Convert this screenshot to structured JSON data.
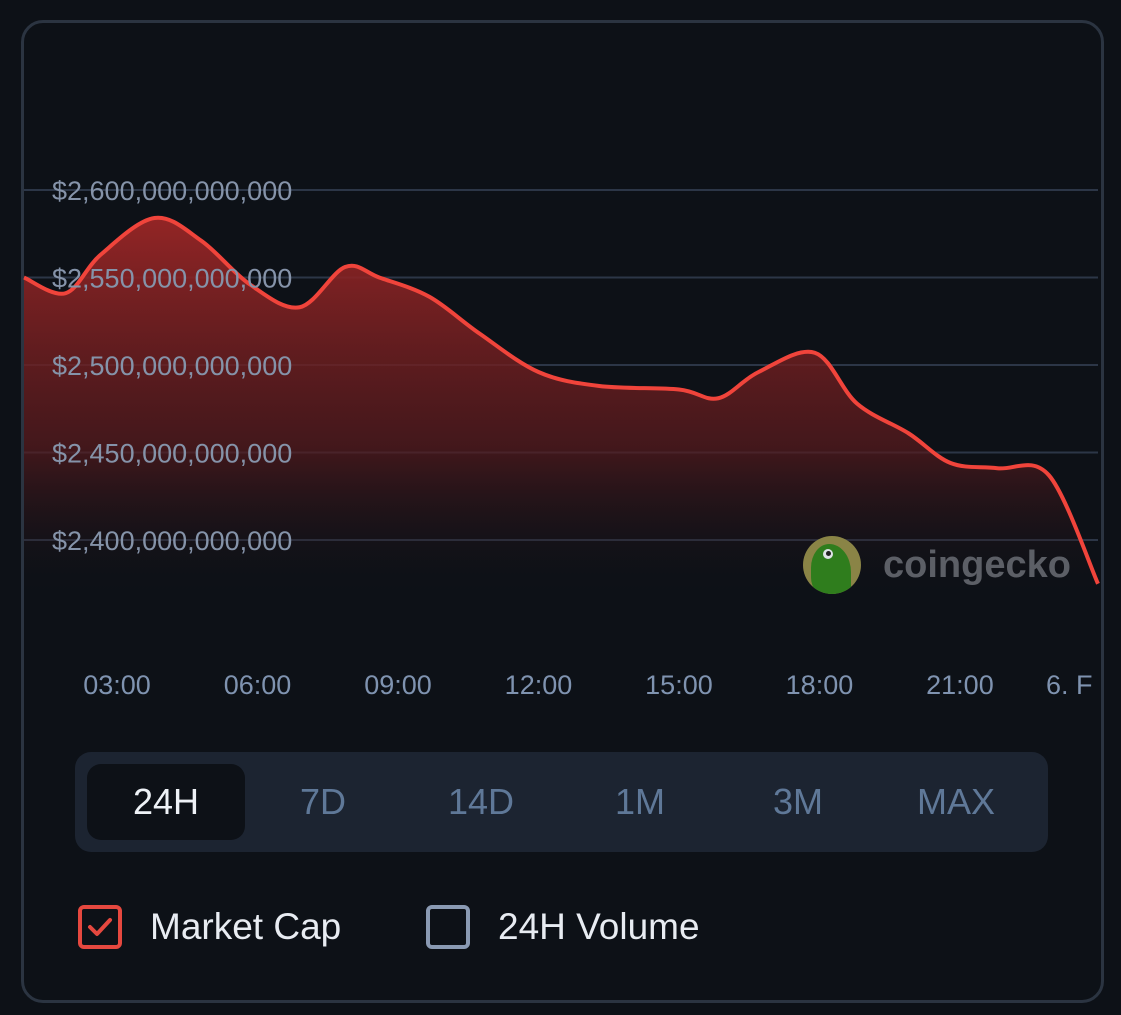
{
  "chart_data": {
    "type": "area",
    "title": "",
    "xlabel": "",
    "ylabel": "Market Cap",
    "x_unit": "hour of day",
    "x_ticks": [
      {
        "x": 3,
        "label": "03:00"
      },
      {
        "x": 6,
        "label": "06:00"
      },
      {
        "x": 9,
        "label": "09:00"
      },
      {
        "x": 12,
        "label": "12:00"
      },
      {
        "x": 15,
        "label": "15:00"
      },
      {
        "x": 18,
        "label": "18:00"
      },
      {
        "x": 21,
        "label": "21:00"
      },
      {
        "x": 24,
        "label": "6. F"
      }
    ],
    "y_ticks": [
      {
        "y": 2600,
        "label": "$2,600,000,000,000"
      },
      {
        "y": 2550,
        "label": "$2,550,000,000,000"
      },
      {
        "y": 2500,
        "label": "$2,500,000,000,000"
      },
      {
        "y": 2450,
        "label": "$2,450,000,000,000"
      },
      {
        "y": 2400,
        "label": "$2,400,000,000,000"
      }
    ],
    "y_unit": "billion USD",
    "grid": true,
    "series": [
      {
        "name": "Market Cap",
        "color": "#f0443b",
        "x": [
          1.04,
          1.9,
          2.65,
          3.8,
          4.8,
          5.84,
          6.9,
          7.87,
          8.6,
          9.67,
          10.74,
          12.0,
          13.3,
          15.0,
          15.84,
          16.7,
          17.9,
          18.8,
          19.9,
          20.8,
          21.8,
          22.9,
          23.9
        ],
        "values": [
          2550,
          2541,
          2563,
          2584,
          2571,
          2546,
          2533,
          2556,
          2550,
          2539,
          2518,
          2496,
          2488,
          2486,
          2481,
          2496,
          2507,
          2478,
          2461,
          2444,
          2441,
          2437,
          2375
        ]
      }
    ]
  },
  "watermark": "coingecko",
  "tabs": [
    {
      "label": "24H",
      "active": true
    },
    {
      "label": "7D"
    },
    {
      "label": "14D"
    },
    {
      "label": "1M"
    },
    {
      "label": "3M"
    },
    {
      "label": "MAX"
    }
  ],
  "legend": [
    {
      "label": "Market Cap",
      "checked": true
    },
    {
      "label": "24H Volume",
      "checked": false
    }
  ]
}
